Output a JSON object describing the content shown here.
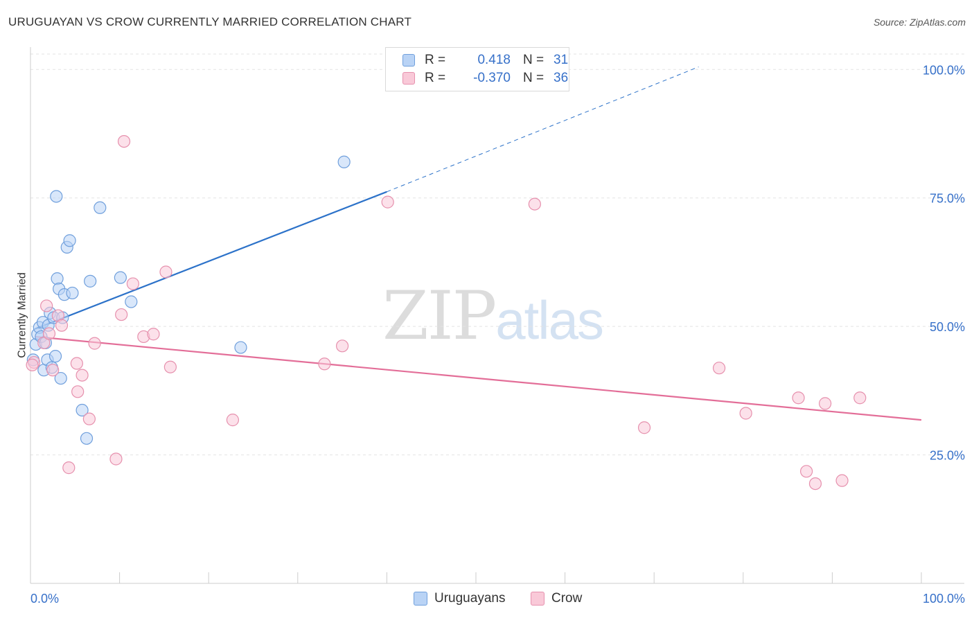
{
  "header": {
    "title": "URUGUAYAN VS CROW CURRENTLY MARRIED CORRELATION CHART",
    "source": "Source: ZipAtlas.com"
  },
  "watermark": {
    "part1": "ZIP",
    "part2": "atlas"
  },
  "colors": {
    "uruguayan_fill": "#b9d3f5",
    "uruguayan_stroke": "#6f9fdc",
    "uruguayan_line": "#2c72c9",
    "crow_fill": "#f9c9d8",
    "crow_stroke": "#e690ad",
    "crow_line": "#e36e98",
    "axis_label": "#3670c9",
    "grid": "#e3e3e3"
  },
  "stats": {
    "uruguayan": {
      "r_label": "R =",
      "r_value": "0.418",
      "n_label": "N =",
      "n_value": "31"
    },
    "crow": {
      "r_label": "R =",
      "r_value": "-0.370",
      "n_label": "N =",
      "n_value": "36"
    }
  },
  "legend": {
    "uruguayans": "Uruguayans",
    "crow": "Crow"
  },
  "chart_data": {
    "type": "scatter",
    "title": "URUGUAYAN VS CROW CURRENTLY MARRIED CORRELATION CHART",
    "xlabel": "",
    "ylabel": "Currently Married",
    "xlim": [
      0,
      100
    ],
    "ylim": [
      0,
      103
    ],
    "x_tick_labels": {
      "min": "0.0%",
      "max": "100.0%"
    },
    "y_ticks": [
      {
        "value": 25,
        "label": "25.0%"
      },
      {
        "value": 50,
        "label": "50.0%"
      },
      {
        "value": 75,
        "label": "75.0%"
      },
      {
        "value": 100,
        "label": "100.0%"
      }
    ],
    "series": [
      {
        "name": "Uruguayans",
        "points": [
          [
            0.3,
            43.5
          ],
          [
            0.6,
            46.5
          ],
          [
            0.8,
            48.5
          ],
          [
            1.0,
            49.8
          ],
          [
            1.2,
            48.0
          ],
          [
            1.4,
            50.8
          ],
          [
            1.5,
            41.5
          ],
          [
            1.7,
            46.8
          ],
          [
            1.9,
            43.5
          ],
          [
            2.0,
            50.2
          ],
          [
            2.2,
            52.6
          ],
          [
            2.4,
            42.0
          ],
          [
            2.6,
            51.7
          ],
          [
            2.8,
            44.2
          ],
          [
            2.9,
            75.3
          ],
          [
            3.0,
            59.3
          ],
          [
            3.2,
            57.3
          ],
          [
            3.4,
            39.9
          ],
          [
            3.6,
            51.7
          ],
          [
            3.8,
            56.2
          ],
          [
            4.1,
            65.4
          ],
          [
            4.4,
            66.7
          ],
          [
            4.7,
            56.5
          ],
          [
            5.8,
            33.7
          ],
          [
            6.3,
            28.2
          ],
          [
            6.7,
            58.8
          ],
          [
            7.8,
            73.1
          ],
          [
            10.1,
            59.5
          ],
          [
            11.3,
            54.8
          ],
          [
            23.6,
            45.9
          ],
          [
            35.2,
            82.0
          ]
        ],
        "trend": {
          "x0": 0.5,
          "y0": 49.5,
          "x1": 40.0,
          "y1": 76.2,
          "dashed_to_x": 75.0,
          "dashed_to_y": 100.5
        }
      },
      {
        "name": "Crow",
        "points": [
          [
            0.4,
            43.0
          ],
          [
            1.5,
            46.8
          ],
          [
            1.8,
            54.0
          ],
          [
            2.1,
            48.6
          ],
          [
            2.5,
            41.5
          ],
          [
            3.1,
            52.1
          ],
          [
            3.5,
            50.2
          ],
          [
            4.3,
            22.5
          ],
          [
            5.2,
            42.8
          ],
          [
            5.3,
            37.3
          ],
          [
            5.8,
            40.5
          ],
          [
            6.6,
            32.0
          ],
          [
            7.2,
            46.7
          ],
          [
            9.6,
            24.2
          ],
          [
            10.2,
            52.3
          ],
          [
            10.5,
            86.0
          ],
          [
            11.5,
            58.3
          ],
          [
            12.7,
            48.0
          ],
          [
            13.8,
            48.5
          ],
          [
            15.2,
            60.6
          ],
          [
            15.7,
            42.1
          ],
          [
            22.7,
            31.8
          ],
          [
            33.0,
            42.7
          ],
          [
            35.0,
            46.2
          ],
          [
            40.1,
            74.2
          ],
          [
            56.6,
            73.8
          ],
          [
            68.9,
            30.3
          ],
          [
            77.3,
            41.9
          ],
          [
            80.3,
            33.1
          ],
          [
            86.2,
            36.1
          ],
          [
            87.1,
            21.8
          ],
          [
            88.1,
            19.4
          ],
          [
            89.2,
            35.0
          ],
          [
            91.1,
            20.0
          ],
          [
            93.1,
            36.1
          ],
          [
            0.2,
            42.5
          ]
        ],
        "trend": {
          "x0": 0.5,
          "y0": 48.0,
          "x1": 100.0,
          "y1": 31.8
        }
      }
    ]
  }
}
